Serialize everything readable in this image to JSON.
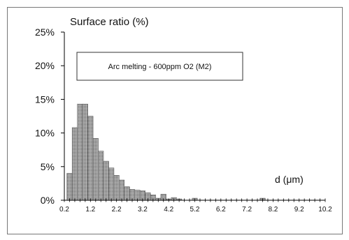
{
  "chart_data": {
    "type": "bar",
    "title": "Surface ratio (%)",
    "xlabel": "d (μm)",
    "ylabel": "",
    "annotation": "Arc melting - 600ppm O2 (M2)",
    "x_ticks": [
      "0.2",
      "1.2",
      "2.2",
      "3.2",
      "4.2",
      "5.2",
      "6.2",
      "7.2",
      "8.2",
      "9.2",
      "10.2"
    ],
    "y_ticks": [
      "0%",
      "5%",
      "10%",
      "15%",
      "20%",
      "25%"
    ],
    "xlim": [
      0.2,
      10.2
    ],
    "ylim": [
      0,
      25
    ],
    "bin_width": 0.2,
    "x": [
      0.4,
      0.6,
      0.8,
      1.0,
      1.2,
      1.4,
      1.6,
      1.8,
      2.0,
      2.2,
      2.4,
      2.6,
      2.8,
      3.0,
      3.2,
      3.4,
      3.6,
      3.8,
      4.0,
      4.2,
      4.4,
      4.6,
      5.2,
      7.8
    ],
    "values": [
      4.0,
      10.8,
      14.3,
      14.3,
      12.5,
      9.2,
      7.3,
      5.8,
      4.8,
      3.7,
      3.0,
      2.0,
      1.6,
      1.5,
      1.4,
      1.1,
      0.8,
      0.3,
      0.9,
      0.2,
      0.4,
      0.2,
      0.3,
      0.3
    ],
    "bar_color": "#9a9a9a",
    "grid": false,
    "legend": false
  }
}
